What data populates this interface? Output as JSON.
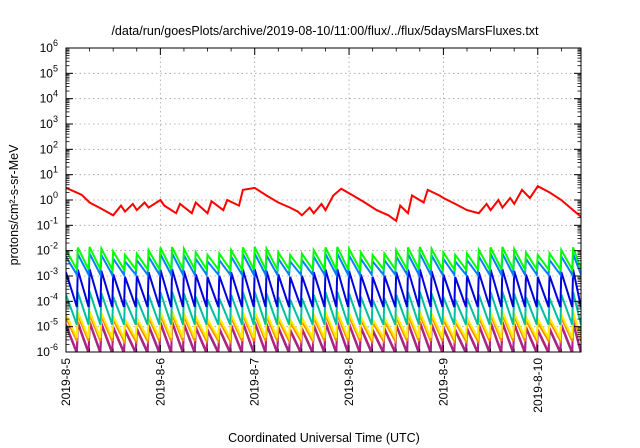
{
  "chart_data": {
    "type": "line",
    "title": "/data/run/goesPlots/archive/2019-08-10/11:00/flux/../flux/5daysMarsFluxes.txt",
    "xlabel": "Coordinated Universal Time (UTC)",
    "ylabel": "protons/cm²-s-sr-MeV",
    "yscale": "log",
    "ylim": [
      1e-06,
      1000000.0
    ],
    "xlim": [
      "2019-08-05 00:00",
      "2019-08-10 11:00"
    ],
    "xticks": [
      "2019-8-5",
      "2019-8-6",
      "2019-8-7",
      "2019-8-8",
      "2019-8-9",
      "2019-8-10"
    ],
    "yticks": [
      {
        "base": "10",
        "exp": "-6"
      },
      {
        "base": "10",
        "exp": "-5"
      },
      {
        "base": "10",
        "exp": "-4"
      },
      {
        "base": "10",
        "exp": "-3"
      },
      {
        "base": "10",
        "exp": "-2"
      },
      {
        "base": "10",
        "exp": "-1"
      },
      {
        "base": "10",
        "exp": "0"
      },
      {
        "base": "10",
        "exp": "1"
      },
      {
        "base": "10",
        "exp": "2"
      },
      {
        "base": "10",
        "exp": "3"
      },
      {
        "base": "10",
        "exp": "4"
      },
      {
        "base": "10",
        "exp": "5"
      },
      {
        "base": "10",
        "exp": "6"
      }
    ],
    "grid": true,
    "series": [
      {
        "color": "#ff0000",
        "x": [
          "2019-08-05 00:00",
          "2019-08-05 02:00",
          "2019-08-05 04:00",
          "2019-08-05 06:00",
          "2019-08-05 09:00",
          "2019-08-05 12:00",
          "2019-08-05 14:00",
          "2019-08-05 15:00",
          "2019-08-05 17:00",
          "2019-08-05 18:00",
          "2019-08-05 20:00",
          "2019-08-05 21:00",
          "2019-08-06 00:00",
          "2019-08-06 01:00",
          "2019-08-06 04:00",
          "2019-08-06 05:00",
          "2019-08-06 08:00",
          "2019-08-06 09:00",
          "2019-08-06 12:00",
          "2019-08-06 13:00",
          "2019-08-06 16:00",
          "2019-08-06 17:00",
          "2019-08-06 20:00",
          "2019-08-06 21:00",
          "2019-08-07 00:00",
          "2019-08-07 03:00",
          "2019-08-07 06:00",
          "2019-08-07 09:00",
          "2019-08-07 11:00",
          "2019-08-07 12:00",
          "2019-08-07 14:00",
          "2019-08-07 15:00",
          "2019-08-07 17:00",
          "2019-08-07 18:00",
          "2019-08-07 20:00",
          "2019-08-07 22:00",
          "2019-08-08 01:00",
          "2019-08-08 04:00",
          "2019-08-08 07:00",
          "2019-08-08 10:00",
          "2019-08-08 12:00",
          "2019-08-08 13:00",
          "2019-08-08 15:00",
          "2019-08-08 16:00",
          "2019-08-08 19:00",
          "2019-08-08 20:00",
          "2019-08-08 23:00",
          "2019-08-09 00:00",
          "2019-08-09 03:00",
          "2019-08-09 06:00",
          "2019-08-09 09:00",
          "2019-08-09 11:00",
          "2019-08-09 12:00",
          "2019-08-09 14:00",
          "2019-08-09 15:00",
          "2019-08-09 17:00",
          "2019-08-09 18:00",
          "2019-08-09 20:00",
          "2019-08-09 22:00",
          "2019-08-10 00:00",
          "2019-08-10 03:00",
          "2019-08-10 06:00",
          "2019-08-10 09:00",
          "2019-08-10 11:00"
        ],
        "y": [
          3.0,
          2.2,
          1.6,
          0.8,
          0.45,
          0.25,
          0.6,
          0.35,
          0.7,
          0.4,
          0.8,
          0.5,
          1.0,
          0.6,
          0.3,
          0.7,
          0.3,
          0.8,
          0.3,
          0.9,
          0.4,
          1.0,
          0.6,
          2.5,
          3.0,
          1.5,
          0.8,
          0.5,
          0.35,
          0.25,
          0.5,
          0.3,
          0.7,
          0.4,
          1.5,
          2.8,
          1.5,
          0.8,
          0.4,
          0.25,
          0.15,
          0.6,
          0.3,
          1.5,
          0.8,
          2.5,
          1.5,
          1.2,
          0.7,
          0.4,
          0.3,
          0.7,
          0.4,
          1.0,
          0.5,
          1.2,
          0.7,
          2.5,
          1.2,
          3.5,
          2.0,
          1.0,
          0.4,
          0.22
        ]
      },
      {
        "color": "#00ff00",
        "base": 0.004,
        "spike": [
          [
            "2019-08-05 10:00",
            0.012
          ]
        ],
        "peak": 2.6,
        "trough": 0.45
      },
      {
        "color": "#0080ff",
        "base": 0.0025,
        "peak": 2.3,
        "trough": 0.45
      },
      {
        "color": "#0000dd",
        "base": 0.0004,
        "peak": 3.5,
        "trough": 0.15
      },
      {
        "color": "#00bfa0",
        "base": 6e-05,
        "peak": 3.0,
        "trough": 0.2
      },
      {
        "color": "#ffee00",
        "base": 1.2e-05,
        "peak": 2.5,
        "trough": 0.3
      },
      {
        "color": "#ff8a00",
        "base": 9e-06,
        "peak": 2.5,
        "trough": 0.3
      },
      {
        "color": "#b0208a",
        "base": 4e-06,
        "peak": 3.0,
        "trough": 0.25
      },
      {
        "color": "#90355a",
        "base": 3.5e-06,
        "peak": 3.0,
        "trough": 0.25
      }
    ],
    "sawtooth_period_hours": 3
  }
}
